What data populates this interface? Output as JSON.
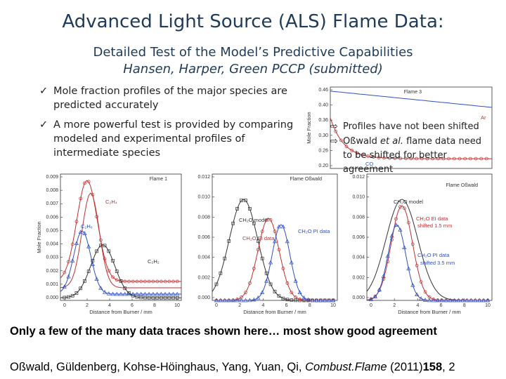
{
  "header": {
    "title": "Advanced Light Source (ALS) Flame Data:",
    "subtitle": "Detailed Test of the Model’s Predictive Capabilities",
    "authors": "Hansen, Harper, Green PCCP (submitted)"
  },
  "bullet_marker": "✓",
  "bullets": [
    "Mole fraction profiles of the major species are predicted accurately",
    "A more powerful test is provided by comparing modeled and experimental profiles of intermediate species"
  ],
  "note_marker": "⇨",
  "notes": [
    [
      "Profiles have not been shifted"
    ],
    [
      "Oßwald ",
      "et al.",
      " flame data need to be shifted for better agreement"
    ]
  ],
  "figures": [
    {
      "title": "Flame 3",
      "y_label": "Mole Fraction",
      "y_ticks": [
        "0.46",
        "0.40",
        "0.36",
        "0.30",
        "0.26",
        "0.20"
      ],
      "x_ticks": [],
      "x_label": "",
      "labels": [
        "Ar",
        "CO"
      ]
    },
    {
      "title": "Flame 1",
      "y_label": "Mole Fraction",
      "y_ticks": [
        "0.009",
        "0.008",
        "0.007",
        "0.006",
        "0.005",
        "0.004",
        "0.003",
        "0.002",
        "0.001",
        "0.000"
      ],
      "x_ticks": [
        "0",
        "2",
        "4",
        "6",
        "8",
        "10"
      ],
      "x_label": "Distance from Burner / mm",
      "labels": [
        "C₂H₄",
        "C₂H₆",
        "C₂H₂"
      ]
    },
    {
      "title": "Flame Oßwald",
      "y_label": "",
      "y_ticks": [
        "0.012",
        "0.010",
        "0.008",
        "0.006",
        "0.004",
        "0.002",
        "0.000"
      ],
      "x_ticks": [
        "0",
        "2",
        "4",
        "6",
        "8",
        "10"
      ],
      "x_label": "Distance from Burner / mm",
      "labels": [
        "CH₂O model",
        "CH₂O EI data",
        "CH₂O PI data"
      ]
    },
    {
      "title": "Flame Oßwald",
      "y_label": "",
      "y_ticks": [
        "0.012",
        "0.010",
        "0.008",
        "0.006",
        "0.004",
        "0.002",
        "0.000"
      ],
      "x_ticks": [
        "0",
        "2",
        "4",
        "6",
        "8",
        "10"
      ],
      "x_label": "Distance from Burner / mm",
      "labels": [
        "CH₂O model",
        "CH₂O EI data",
        "shifted 1.5 mm",
        "CH₂O PI data",
        "shifted 3.5 mm"
      ]
    }
  ],
  "summary": "Only a few of the many data traces shown here… most show good agreement",
  "citation": {
    "authors": "Oßwald, Güldenberg, Kohse-Höinghaus, Yang, Yuan, Qi, ",
    "journal": "Combust.Flame",
    "year": " (2011)",
    "volume": "158",
    "pages": ", 2"
  }
}
